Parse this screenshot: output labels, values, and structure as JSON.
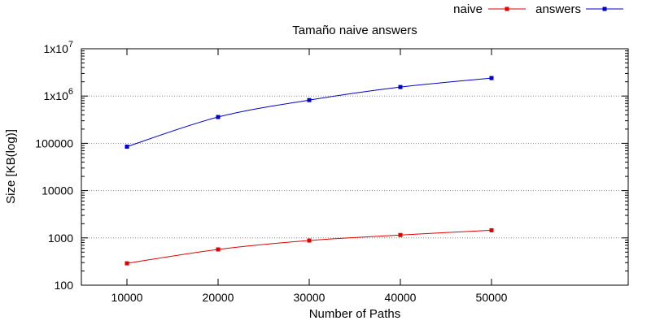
{
  "chart_data": {
    "type": "line",
    "title": "Tamaño naive answers",
    "xlabel": "Number of Paths",
    "ylabel": "Size [KB(log)]",
    "x": [
      10000,
      20000,
      30000,
      40000,
      50000
    ],
    "xlim": [
      5000,
      65000
    ],
    "ylim": [
      100,
      10000000
    ],
    "y_scale": "log",
    "x_ticks": [
      "10000",
      "20000",
      "30000",
      "40000",
      "50000"
    ],
    "y_ticks": [
      {
        "value": 100,
        "label": "100"
      },
      {
        "value": 1000,
        "label": "1000"
      },
      {
        "value": 10000,
        "label": "10000"
      },
      {
        "value": 100000,
        "label": "100000"
      },
      {
        "value": 1000000,
        "label": "1x10",
        "exp": "6"
      },
      {
        "value": 10000000,
        "label": "1x10",
        "exp": "7"
      }
    ],
    "grid": "horizontal dotted",
    "legend_position": "top-right",
    "series": [
      {
        "name": "naive",
        "color": "#e00000",
        "marker": "square",
        "values": [
          290,
          570,
          880,
          1150,
          1450
        ]
      },
      {
        "name": "answers",
        "color": "#0000c8",
        "marker": "square",
        "values": [
          85000,
          360000,
          820000,
          1550000,
          2400000
        ]
      }
    ]
  }
}
